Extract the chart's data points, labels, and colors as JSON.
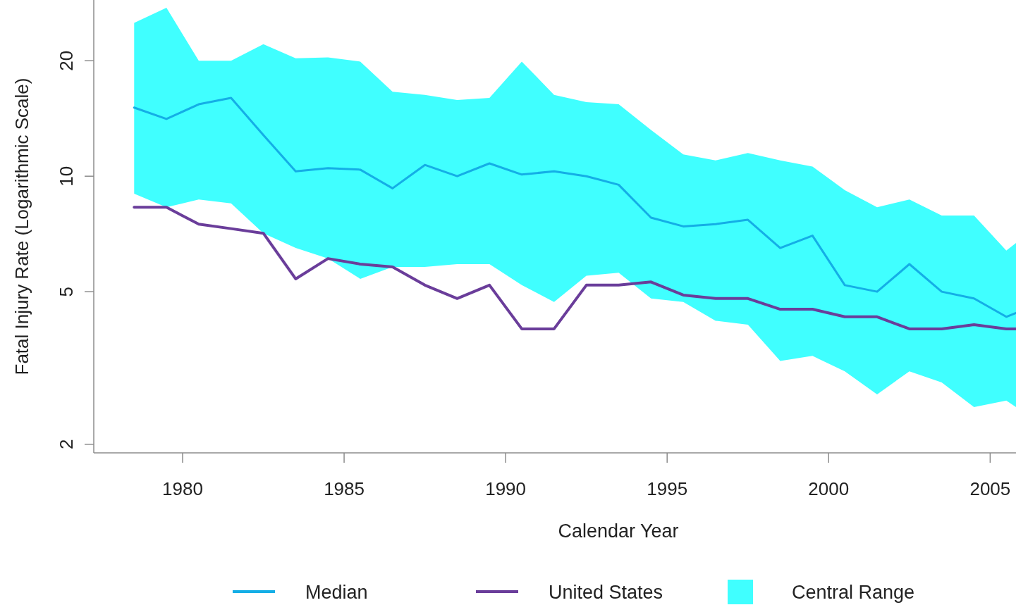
{
  "chart_data": {
    "type": "line",
    "xlabel": "Calendar Year",
    "ylabel": "Fatal Injury Rate (Logarithmic Scale)",
    "x": [
      1978.5,
      1979.5,
      1980.5,
      1981.5,
      1982.5,
      1983.5,
      1984.5,
      1985.5,
      1986.5,
      1987.5,
      1988.5,
      1989.5,
      1990.5,
      1991.5,
      1992.5,
      1993.5,
      1994.5,
      1995.5,
      1996.5,
      1997.5,
      1998.5,
      1999.5,
      2000.5,
      2001.5,
      2002.5,
      2003.5,
      2004.5,
      2005.5,
      2005.8
    ],
    "series": [
      {
        "name": "Median",
        "type": "line",
        "color": "#14aee6",
        "values": [
          15.1,
          14.1,
          15.4,
          16.0,
          12.8,
          10.3,
          10.5,
          10.4,
          9.3,
          10.7,
          10.0,
          10.8,
          10.1,
          10.3,
          10.0,
          9.5,
          7.8,
          7.4,
          7.5,
          7.7,
          6.5,
          7.0,
          5.2,
          5.0,
          5.9,
          5.0,
          4.8,
          4.3,
          4.4
        ]
      },
      {
        "name": "United States",
        "type": "line",
        "color": "#6a3d9a",
        "values": [
          8.3,
          8.3,
          7.5,
          7.3,
          7.1,
          5.4,
          6.1,
          5.9,
          5.8,
          5.2,
          4.8,
          5.2,
          4.0,
          4.0,
          5.2,
          5.2,
          5.3,
          4.9,
          4.8,
          4.8,
          4.5,
          4.5,
          4.3,
          4.3,
          4.0,
          4.0,
          4.1,
          4.0,
          4.0
        ]
      },
      {
        "name": "Central Range",
        "type": "area",
        "color": "#40ffff",
        "values": [
          null,
          null,
          null,
          null,
          null,
          null,
          null,
          null,
          null,
          null,
          null,
          null,
          null,
          null,
          null,
          null,
          null,
          null,
          null,
          null,
          null,
          null,
          null,
          null,
          null,
          null,
          null,
          null,
          null
        ],
        "lower": [
          9.0,
          8.3,
          8.7,
          8.5,
          7.1,
          6.5,
          6.1,
          5.4,
          5.8,
          5.8,
          5.9,
          5.9,
          5.2,
          4.7,
          5.5,
          5.6,
          4.8,
          4.7,
          4.2,
          4.1,
          3.3,
          3.4,
          3.1,
          2.7,
          3.1,
          2.9,
          2.5,
          2.6,
          2.5
        ],
        "upper": [
          25.1,
          27.5,
          20.0,
          20.0,
          22.1,
          20.3,
          20.4,
          19.9,
          16.6,
          16.3,
          15.8,
          16.0,
          19.9,
          16.3,
          15.6,
          15.4,
          13.2,
          11.4,
          11.0,
          11.5,
          11.0,
          10.6,
          9.2,
          8.3,
          8.7,
          7.9,
          7.9,
          6.4,
          6.7
        ]
      }
    ],
    "xlim": [
      1977.25,
      2005.8
    ],
    "xticks": [
      1980,
      1985,
      1990,
      1995,
      2000,
      2005
    ],
    "ylim": [
      1.9,
      28.8
    ],
    "yticks": [
      2,
      5,
      10,
      20
    ],
    "log": "y",
    "legend": "bottom"
  }
}
